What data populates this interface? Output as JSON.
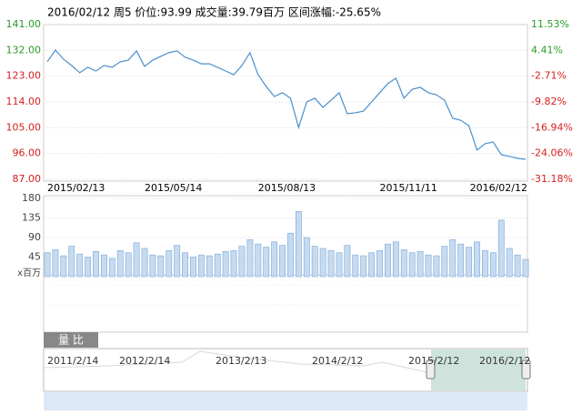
{
  "chart_data": {
    "type": "line",
    "title": "2016/02/12 周5 价位:93.99 成交量:39.79百万 区间涨幅:-25.65%",
    "categories": [
      "2015/02/13",
      null,
      null,
      null,
      null,
      null,
      null,
      null,
      null,
      null,
      null,
      null,
      "2015/05/14",
      null,
      null,
      null,
      null,
      null,
      null,
      null,
      null,
      null,
      null,
      null,
      null,
      null,
      "2015/08/13",
      null,
      null,
      null,
      null,
      null,
      null,
      null,
      null,
      null,
      null,
      null,
      null,
      null,
      null,
      "2015/11/11",
      null,
      null,
      null,
      null,
      null,
      null,
      null,
      null,
      null,
      null,
      null,
      null,
      null,
      null,
      null,
      null,
      null,
      "2016/02/12"
    ],
    "series": [
      {
        "color": "#4a8fcc",
        "values": [
          128.0,
          132.1,
          128.9,
          126.7,
          124.2,
          126.1,
          124.8,
          126.7,
          126.1,
          128.0,
          128.6,
          131.8,
          126.4,
          128.6,
          129.9,
          131.2,
          131.8,
          129.6,
          128.6,
          127.3,
          127.3,
          126.1,
          124.8,
          123.5,
          126.7,
          131.2,
          123.5,
          119.4,
          115.9,
          117.2,
          115.3,
          105.1,
          114.0,
          115.3,
          112.1,
          114.6,
          117.2,
          109.9,
          110.2,
          110.8,
          114.0,
          117.2,
          120.4,
          122.3,
          115.3,
          118.4,
          119.1,
          117.2,
          116.5,
          114.6,
          108.3,
          107.6,
          105.7,
          97.2,
          99.4,
          100.0,
          95.6,
          95.0,
          94.3,
          93.99
        ]
      },
      {
        "axis": "volume",
        "color": "#c6daf0",
        "values": [
          55,
          62,
          48,
          70,
          52,
          45,
          58,
          50,
          42,
          60,
          55,
          78,
          65,
          50,
          48,
          60,
          72,
          55,
          45,
          50,
          48,
          52,
          58,
          60,
          70,
          85,
          75,
          68,
          80,
          72,
          100,
          150,
          90,
          70,
          65,
          60,
          55,
          72,
          50,
          48,
          55,
          60,
          75,
          80,
          62,
          55,
          58,
          50,
          48,
          70,
          85,
          75,
          68,
          80,
          60,
          55,
          130,
          65,
          50,
          39.79
        ]
      }
    ],
    "ylim": [
      87,
      141
    ],
    "yticks": [
      {
        "value": 141,
        "label": "141.00"
      },
      {
        "value": 132,
        "label": "132.00"
      },
      {
        "value": 123,
        "label": "123.00"
      },
      {
        "value": 114,
        "label": "114.00"
      },
      {
        "value": 105,
        "label": "105.00"
      },
      {
        "value": 96,
        "label": "96.00"
      },
      {
        "value": 87,
        "label": "87.00"
      }
    ],
    "y2lim": [
      -31.18,
      11.53
    ],
    "y2ticks": [
      {
        "value": 11.53,
        "label": "11.53%"
      },
      {
        "value": 4.41,
        "label": "4.41%"
      },
      {
        "value": -2.71,
        "label": "-2.71%"
      },
      {
        "value": -9.82,
        "label": "-9.82%"
      },
      {
        "value": -16.94,
        "label": "-16.94%"
      },
      {
        "value": -24.06,
        "label": "-24.06%"
      },
      {
        "value": -31.18,
        "label": "-31.18%"
      }
    ],
    "volume_ylim": [
      0,
      180
    ],
    "volume_yticks": [
      180,
      135,
      90,
      45
    ],
    "volume_unit": "x百万",
    "up_color": "#2a9a2a",
    "down_color": "#d42020",
    "grid": true,
    "tab": "量 比",
    "navigator_labels": [
      "2011/2/14",
      "2012/2/14",
      "2013/2/13",
      "2014/2/12",
      "2015/2/12",
      "2016/2/12"
    ]
  }
}
